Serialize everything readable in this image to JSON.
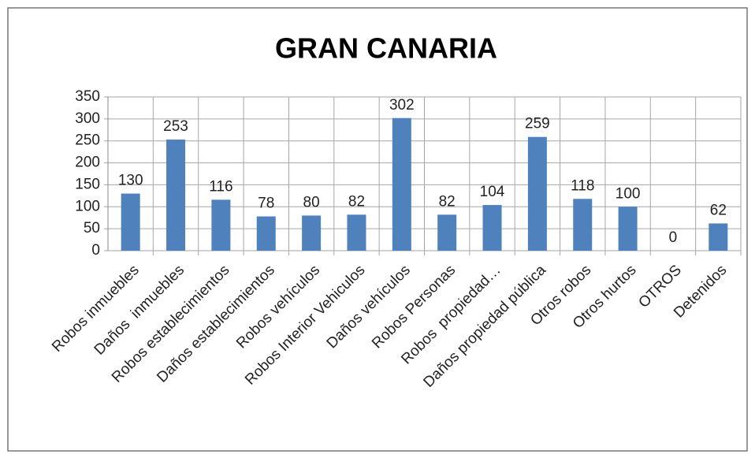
{
  "chart_data": {
    "type": "bar",
    "title": "GRAN CANARIA",
    "categories": [
      "Robos inmuebles",
      "Daños  inmuebles",
      "Robos establecimientos",
      "Daños establecimientos",
      "Robos vehículos",
      "Robos Interior Vehiculos",
      "Daños vehículos",
      "Robos Personas",
      "Robos  propiedad…",
      "Daños propiedad pública",
      "Otros robos",
      "Otros hurtos",
      "OTROS",
      "Detenidos"
    ],
    "values": [
      130,
      253,
      116,
      78,
      80,
      82,
      302,
      82,
      104,
      259,
      118,
      100,
      0,
      62
    ],
    "color": "#4f81bd",
    "ylim": [
      0,
      350
    ],
    "yticks": [
      0,
      50,
      100,
      150,
      200,
      250,
      300,
      350
    ],
    "grid": true,
    "legend": false
  }
}
